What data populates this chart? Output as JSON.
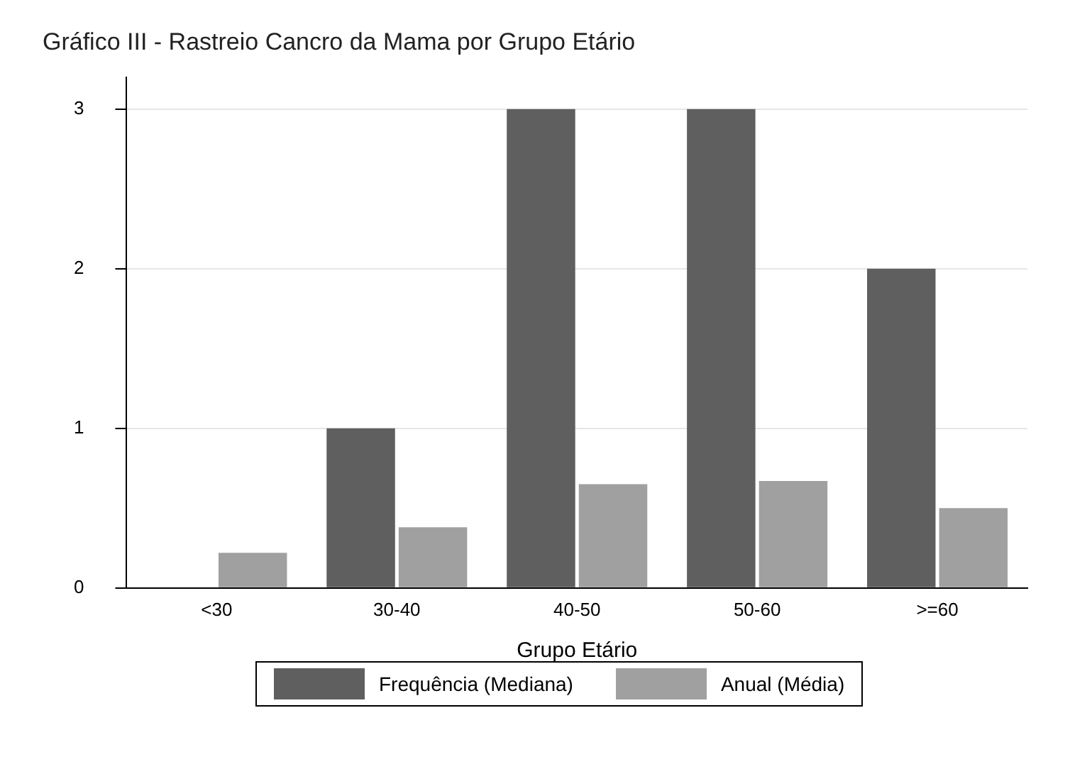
{
  "chart_data": {
    "type": "bar",
    "title": "Gráfico III - Rastreio Cancro da Mama por Grupo Etário",
    "xlabel": "Grupo Etário",
    "categories": [
      "<30",
      "30-40",
      "40-50",
      "50-60",
      ">=60"
    ],
    "series": [
      {
        "name": "Frequência (Mediana)",
        "color": "#5f5f5f",
        "values": [
          0,
          1,
          3,
          3,
          2
        ]
      },
      {
        "name": "Anual (Média)",
        "color": "#a0a0a0",
        "values": [
          0.22,
          0.38,
          0.65,
          0.67,
          0.5
        ]
      }
    ],
    "ylim": [
      0,
      3.2
    ],
    "yticks": [
      0,
      1,
      2,
      3
    ],
    "grid": "y",
    "legend": "bottom"
  }
}
